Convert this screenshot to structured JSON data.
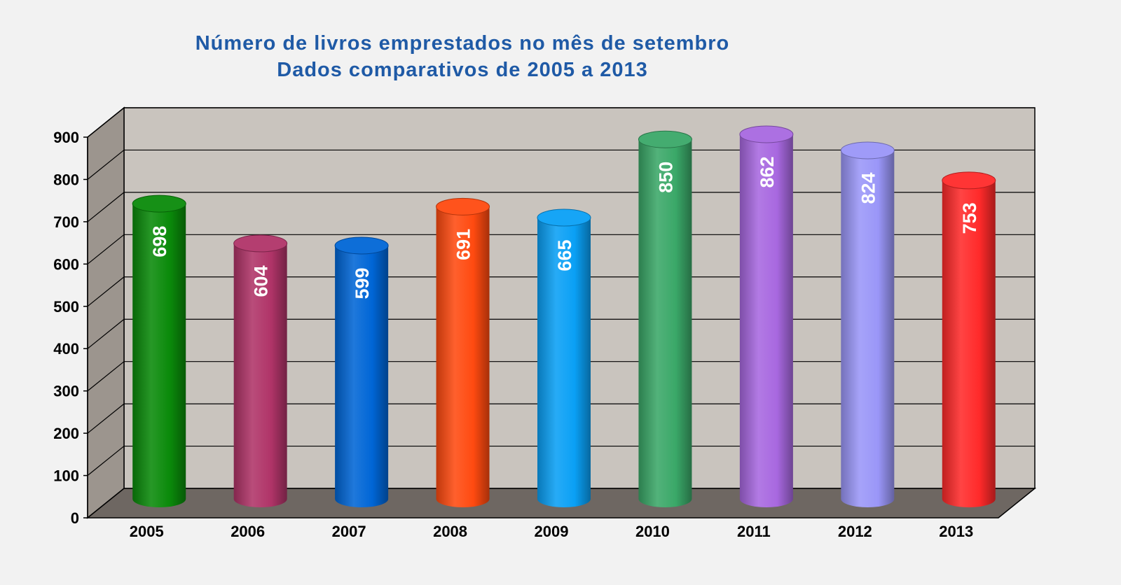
{
  "chart_data": {
    "type": "bar",
    "title": "Número de livros emprestados no mês de setembro",
    "subtitle": "Dados comparativos de 2005 a 2013",
    "categories": [
      "2005",
      "2006",
      "2007",
      "2008",
      "2009",
      "2010",
      "2011",
      "2012",
      "2013"
    ],
    "values": [
      698,
      604,
      599,
      691,
      665,
      850,
      862,
      824,
      753
    ],
    "value_labels": [
      "698",
      "604",
      "599",
      "691",
      "665",
      "850",
      "862",
      "824",
      "753"
    ],
    "colors": [
      "#0a8a0a",
      "#b03468",
      "#0066d6",
      "#ff4a10",
      "#0aa0f5",
      "#3aa868",
      "#a868e0",
      "#9a96f8",
      "#ff2a2a"
    ],
    "yticks": [
      "0",
      "100",
      "200",
      "300",
      "400",
      "500",
      "600",
      "700",
      "800",
      "900"
    ],
    "ylim": [
      0,
      900
    ],
    "xlabel": "",
    "ylabel": "",
    "grid": true,
    "legend": "none",
    "style": "3d cylinders, vertical value labels inside bars"
  }
}
